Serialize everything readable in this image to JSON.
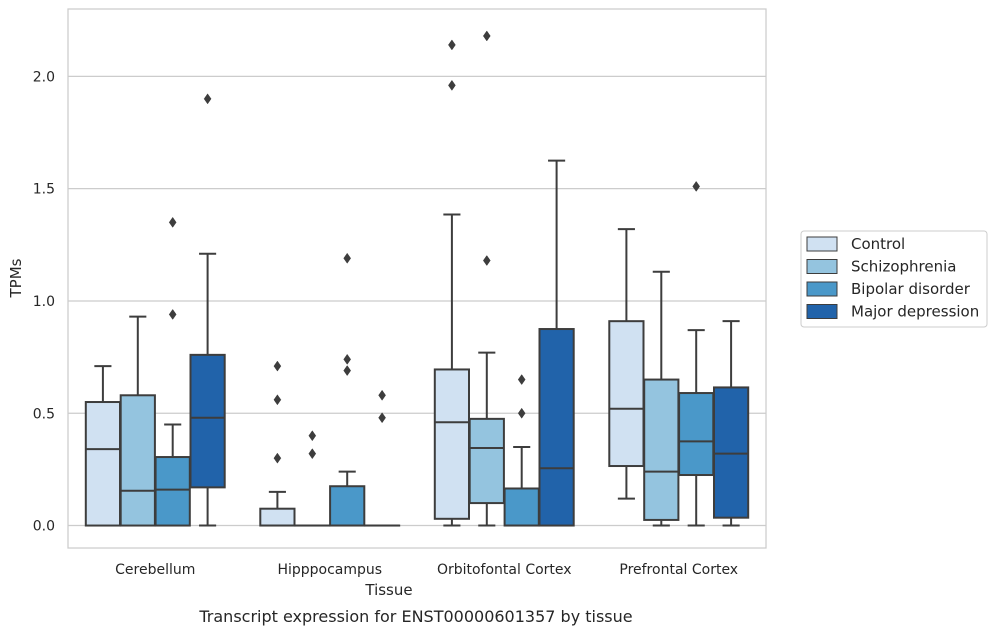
{
  "caption": "Transcript expression for ENST00000601357 by tissue",
  "chart_data": {
    "type": "box",
    "xlabel": "Tissue",
    "ylabel": "TPMs",
    "ylim": [
      -0.1,
      2.3
    ],
    "yticks": [
      0.0,
      0.5,
      1.0,
      1.5,
      2.0
    ],
    "ytick_labels": [
      "0.0",
      "0.5",
      "1.0",
      "1.5",
      "2.0"
    ],
    "grid": "horizontal",
    "legend_position": "right",
    "categories": [
      "Cerebellum",
      "Hipppocampus",
      "Orbitofontal Cortex",
      "Prefrontal Cortex"
    ],
    "series": [
      {
        "name": "Control",
        "color": "#d0e1f2",
        "boxes": [
          {
            "min": 0.0,
            "q1": 0.0,
            "median": 0.34,
            "q3": 0.55,
            "max": 0.71,
            "outliers": []
          },
          {
            "min": 0.0,
            "q1": 0.0,
            "median": 0.0,
            "q3": 0.075,
            "max": 0.15,
            "outliers": [
              0.3,
              0.56,
              0.71
            ]
          },
          {
            "min": 0.0,
            "q1": 0.03,
            "median": 0.46,
            "q3": 0.695,
            "max": 1.385,
            "outliers": [
              1.96,
              2.14
            ]
          },
          {
            "min": 0.12,
            "q1": 0.265,
            "median": 0.52,
            "q3": 0.91,
            "max": 1.32,
            "outliers": []
          }
        ]
      },
      {
        "name": "Schizophrenia",
        "color": "#94c4df",
        "boxes": [
          {
            "min": 0.0,
            "q1": 0.0,
            "median": 0.155,
            "q3": 0.58,
            "max": 0.93,
            "outliers": []
          },
          {
            "min": 0.0,
            "q1": 0.0,
            "median": 0.0,
            "q3": 0.0,
            "max": 0.0,
            "outliers": [
              0.32,
              0.4
            ]
          },
          {
            "min": 0.0,
            "q1": 0.1,
            "median": 0.345,
            "q3": 0.475,
            "max": 0.77,
            "outliers": [
              1.18,
              2.18
            ]
          },
          {
            "min": 0.0,
            "q1": 0.025,
            "median": 0.24,
            "q3": 0.65,
            "max": 1.13,
            "outliers": []
          }
        ]
      },
      {
        "name": "Bipolar disorder",
        "color": "#4a98c9",
        "boxes": [
          {
            "min": 0.0,
            "q1": 0.0,
            "median": 0.16,
            "q3": 0.305,
            "max": 0.45,
            "outliers": [
              0.94,
              1.35
            ]
          },
          {
            "min": 0.0,
            "q1": 0.0,
            "median": 0.0,
            "q3": 0.175,
            "max": 0.24,
            "outliers": [
              0.69,
              0.74,
              1.19
            ]
          },
          {
            "min": 0.0,
            "q1": 0.0,
            "median": 0.0,
            "q3": 0.165,
            "max": 0.35,
            "outliers": [
              0.5,
              0.65
            ]
          },
          {
            "min": 0.0,
            "q1": 0.225,
            "median": 0.375,
            "q3": 0.59,
            "max": 0.87,
            "outliers": [
              1.51
            ]
          }
        ]
      },
      {
        "name": "Major depression",
        "color": "#2163aa",
        "boxes": [
          {
            "min": 0.0,
            "q1": 0.17,
            "median": 0.48,
            "q3": 0.76,
            "max": 1.21,
            "outliers": [
              1.9
            ]
          },
          {
            "min": 0.0,
            "q1": 0.0,
            "median": 0.0,
            "q3": 0.0,
            "max": 0.0,
            "outliers": [
              0.48,
              0.58
            ]
          },
          {
            "min": 0.0,
            "q1": 0.0,
            "median": 0.255,
            "q3": 0.875,
            "max": 1.625,
            "outliers": []
          },
          {
            "min": 0.0,
            "q1": 0.035,
            "median": 0.32,
            "q3": 0.615,
            "max": 0.91,
            "outliers": []
          }
        ]
      }
    ]
  }
}
